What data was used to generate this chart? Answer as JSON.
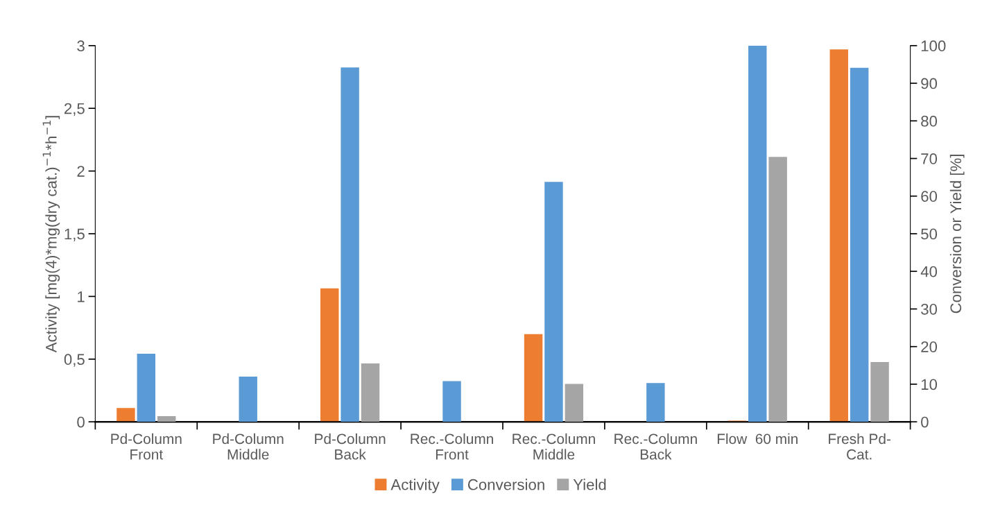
{
  "chart_data": {
    "type": "bar",
    "ylabel": "Activity [mg(4)*mg(dry cat.)$^{−1}$*h$^{−1}$]",
    "y2label": "Conversion or Yield [%]",
    "categories": [
      "Pd-Column\nFront",
      "Pd-Column\nMiddle",
      "Pd-Column\nBack",
      "Rec.-Column\nFront",
      "Rec.-Column\nMiddle",
      "Rec.-Column\nBack",
      "Flow  60 min",
      "Fresh Pd-\nCat."
    ],
    "series": [
      {
        "name": "Activity",
        "color": "#ed7d31",
        "values": [
          0.11,
          null,
          1.065,
          null,
          0.7,
          null,
          0.01,
          2.97
        ]
      },
      {
        "name": "Conversion",
        "color": "#5b9bd5",
        "axis": "y2",
        "values": [
          18.1,
          12.0,
          94.2,
          10.8,
          63.8,
          10.3,
          100,
          94.1
        ]
      },
      {
        "name": "Yield",
        "color": "#a5a5a5",
        "axis": "y2",
        "values": [
          1.5,
          null,
          15.5,
          null,
          10.1,
          null,
          70.4,
          15.9
        ]
      }
    ],
    "ylim": [
      0,
      3
    ],
    "yticks": [
      0,
      {
        "value": 0.5,
        "label": "0,5"
      },
      1,
      {
        "value": 1.5,
        "label": "1,5"
      },
      2,
      {
        "value": 2.5,
        "label": "2,5"
      },
      3
    ],
    "y2lim": [
      0,
      100
    ],
    "y2ticks": [
      0,
      10,
      20,
      30,
      40,
      50,
      60,
      70,
      80,
      90,
      100
    ],
    "legend": "bottom",
    "grid": false
  }
}
